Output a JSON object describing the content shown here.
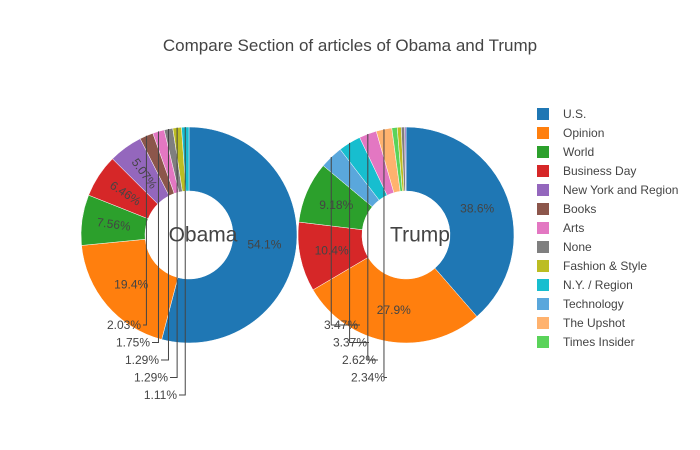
{
  "chart_data": {
    "type": "pie",
    "title": "Compare Section of articles of Obama and Trump",
    "hole": true,
    "legend_position": "right",
    "categories": [
      "U.S.",
      "Opinion",
      "World",
      "Business Day",
      "New York and Region",
      "Books",
      "Arts",
      "None",
      "Fashion & Style",
      "N.Y. / Region",
      "Technology",
      "The Upshot",
      "Times Insider"
    ],
    "colors": [
      "#1f77b4",
      "#ff7f0e",
      "#2ca02c",
      "#d62728",
      "#9467bd",
      "#8c564b",
      "#e377c2",
      "#7f7f7f",
      "#bcbd22",
      "#17becf",
      "#5aa7dc",
      "#ffb26e",
      "#5ad35a"
    ],
    "series": [
      {
        "name": "Obama",
        "slices": [
          {
            "label": "U.S.",
            "value": 54.1,
            "text": "54.1%"
          },
          {
            "label": "Opinion",
            "value": 19.4,
            "text": "19.4%"
          },
          {
            "label": "World",
            "value": 7.56,
            "text": "7.56%"
          },
          {
            "label": "Business Day",
            "value": 6.46,
            "text": "6.46%"
          },
          {
            "label": "New York and Region",
            "value": 5.07,
            "text": "5.07%"
          },
          {
            "label": "Books",
            "value": 2.03,
            "text": "2.03%"
          },
          {
            "label": "Arts",
            "value": 1.75,
            "text": "1.75%"
          },
          {
            "label": "None",
            "value": 1.29,
            "text": "1.29%"
          },
          {
            "label": "Fashion & Style",
            "value": 1.29,
            "text": "1.29%"
          },
          {
            "label": "N.Y. / Region",
            "value": 1.11,
            "text": "1.11%"
          }
        ]
      },
      {
        "name": "Trump",
        "slices": [
          {
            "label": "U.S.",
            "value": 38.6,
            "text": "38.6%"
          },
          {
            "label": "Opinion",
            "value": 27.9,
            "text": "27.9%"
          },
          {
            "label": "Business Day",
            "value": 10.4,
            "text": "10.4%"
          },
          {
            "label": "World",
            "value": 9.18,
            "text": "9.18%"
          },
          {
            "label": "Technology",
            "value": 3.47,
            "text": "3.47%"
          },
          {
            "label": "N.Y. / Region",
            "value": 3.37,
            "text": "3.37%"
          },
          {
            "label": "Arts",
            "value": 2.62,
            "text": "2.62%"
          },
          {
            "label": "The Upshot",
            "value": 2.34,
            "text": "2.34%"
          },
          {
            "label": "Times Insider",
            "value": 0.8,
            "text": ""
          },
          {
            "label": "Fashion & Style",
            "value": 0.6,
            "text": ""
          },
          {
            "label": "None",
            "value": 0.5,
            "text": ""
          },
          {
            "label": "New York and Region",
            "value": 0.2,
            "text": ""
          }
        ]
      }
    ]
  }
}
